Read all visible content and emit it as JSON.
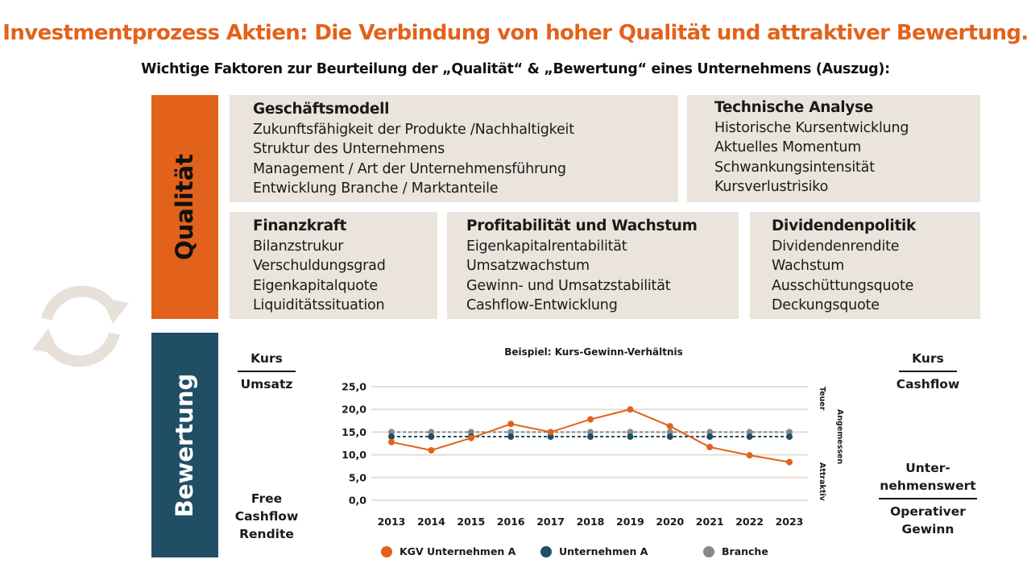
{
  "title": "Investmentprozess Aktien: Die Verbindung von hoher Qualität und attraktiver Bewertung.",
  "subtitle": "Wichtige Faktoren zur Beurteilung der „Qualität“ & „Bewertung“ eines Unternehmens (Auszug):",
  "colors": {
    "orange": "#e2621b",
    "navy": "#1f4e65",
    "grey": "#888888",
    "box": "#ebe4dc"
  },
  "icons": {
    "cycle": "circular-arrows-icon"
  },
  "quality": {
    "label": "Qualität",
    "boxes": [
      {
        "heading": "Geschäftsmodell",
        "items": [
          "Zukunftsfähigkeit der Produkte /Nachhaltigkeit",
          "Struktur des Unternehmens",
          "Management / Art der Unternehmensführung",
          "Entwicklung Branche / Marktanteile"
        ]
      },
      {
        "heading": "Technische Analyse",
        "items": [
          "Historische Kursentwicklung",
          "Aktuelles Momentum",
          "Schwankungsintensität",
          "Kursverlustrisiko"
        ]
      },
      {
        "heading": "Finanzkraft",
        "items": [
          "Bilanzstrukur",
          "Verschuldungsgrad",
          "Eigenkapitalquote",
          "Liquiditätssituation"
        ]
      },
      {
        "heading": "Profitabilität und Wachstum",
        "items": [
          "Eigenkapitalrentabilität",
          "Umsatzwachstum",
          "Gewinn- und Umsatzstabilität",
          "Cashflow-Entwicklung"
        ]
      },
      {
        "heading": "Dividendenpolitik",
        "items": [
          "Dividendenrendite",
          "Wachstum",
          "Ausschüttungsquote",
          "Deckungsquote"
        ]
      }
    ]
  },
  "valuation": {
    "label": "Bewertung",
    "kurs_umsatz": {
      "top": "Kurs",
      "bottom": "Umsatz"
    },
    "kurs_cashflow": {
      "top": "Kurs",
      "bottom": "Cashflow"
    },
    "fcf_rendite": [
      "Free",
      "Cashflow",
      "Rendite"
    ],
    "ev_gewinn": {
      "top": [
        "Unter-",
        "nehmenswert"
      ],
      "bottom": [
        "Operativer",
        "Gewinn"
      ]
    }
  },
  "chart_data": {
    "type": "line",
    "title": "Beispiel: Kurs-Gewinn-Verhältnis",
    "x": [
      "2013",
      "2014",
      "2015",
      "2016",
      "2017",
      "2018",
      "2019",
      "2020",
      "2021",
      "2022",
      "2023"
    ],
    "ylim": [
      0,
      25
    ],
    "yticks": [
      "0,0",
      "5,0",
      "10,0",
      "15,0",
      "20,0",
      "25,0"
    ],
    "grid": true,
    "legend_position": "bottom",
    "side_labels": [
      "Teuer",
      "Angemessen",
      "Attraktiv"
    ],
    "series": [
      {
        "name": "KGV Unternehmen A",
        "color": "#e2621b",
        "style": "solid",
        "values": [
          12.8,
          11.0,
          13.7,
          16.8,
          15.0,
          17.8,
          20.0,
          16.3,
          11.7,
          9.9,
          8.4
        ]
      },
      {
        "name": "Unternehmen A",
        "color": "#1f4e65",
        "style": "dashed",
        "values": [
          14,
          14,
          14,
          14,
          14,
          14,
          14,
          14,
          14,
          14,
          14
        ]
      },
      {
        "name": "Branche",
        "color": "#888888",
        "style": "dashed",
        "values": [
          15,
          15,
          15,
          15,
          15,
          15,
          15,
          15,
          15,
          15,
          15
        ]
      }
    ]
  }
}
